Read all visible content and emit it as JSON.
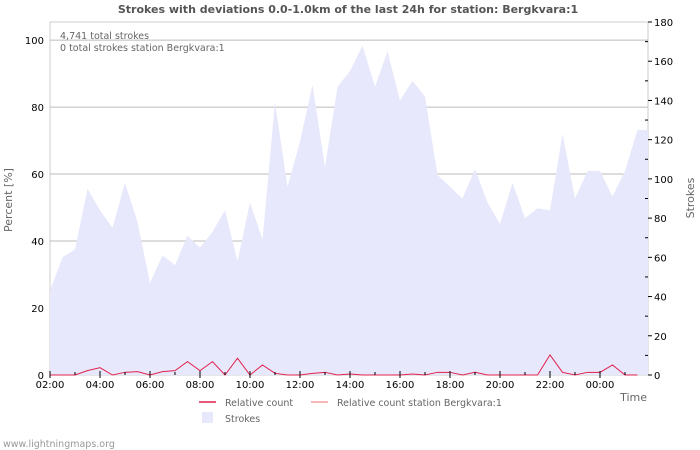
{
  "chart_data": {
    "type": "area",
    "title": "Strokes with deviations 0.0-1.0km of the last 24h for station: Bergkvara:1",
    "info_lines": [
      "4,741 total strokes",
      "0 total strokes station Bergkvara:1"
    ],
    "xlabel": "Time",
    "ylabel_left": "Percent   [%]",
    "ylabel_right": "Strokes",
    "x_tick_labels": [
      "02:00",
      "04:00",
      "06:00",
      "08:00",
      "10:00",
      "12:00",
      "14:00",
      "16:00",
      "18:00",
      "20:00",
      "22:00",
      "00:00"
    ],
    "y_left_ticks": [
      0,
      20,
      40,
      60,
      80,
      100
    ],
    "y_right_ticks": [
      0,
      20,
      40,
      60,
      80,
      100,
      120,
      140,
      160,
      180
    ],
    "ylim_left": [
      0,
      105.4
    ],
    "ylim_right": [
      0,
      180
    ],
    "x_start": "02:00",
    "x_step_minutes": 30,
    "grid": true,
    "series": [
      {
        "name": "Strokes",
        "axis": "right",
        "type": "area",
        "color": "#e8e8fc",
        "values": [
          43,
          60,
          64,
          95,
          84,
          75,
          98,
          78,
          47,
          61,
          56,
          71,
          65,
          73,
          84,
          58,
          88,
          69,
          139,
          96,
          119,
          148,
          106,
          147,
          155,
          168,
          147,
          165,
          140,
          150,
          142,
          102,
          96,
          90,
          105,
          88,
          77,
          98,
          80,
          85,
          84,
          123,
          90,
          104,
          104,
          91,
          104,
          125
        ]
      },
      {
        "name": "Relative count",
        "axis": "left",
        "type": "line",
        "color": "#e0204c",
        "values": [
          0,
          0,
          0,
          1.3,
          2.2,
          0,
          0.8,
          1,
          0,
          1,
          1.3,
          4,
          1.3,
          4,
          0,
          5,
          0,
          3,
          0.5,
          0,
          0,
          0.5,
          0.8,
          0,
          0.3,
          0,
          0,
          0,
          0,
          0.3,
          0,
          0.8,
          0.8,
          0,
          0.8,
          0,
          0,
          0,
          0,
          0,
          6,
          0.8,
          0,
          0.8,
          0.8,
          3,
          0,
          0
        ]
      },
      {
        "name": "Relative count station Bergkvara:1",
        "axis": "left",
        "type": "line",
        "color": "#f4a0a0",
        "values": []
      }
    ],
    "legend_position": "bottom"
  },
  "footer": "www.lightningmaps.org"
}
